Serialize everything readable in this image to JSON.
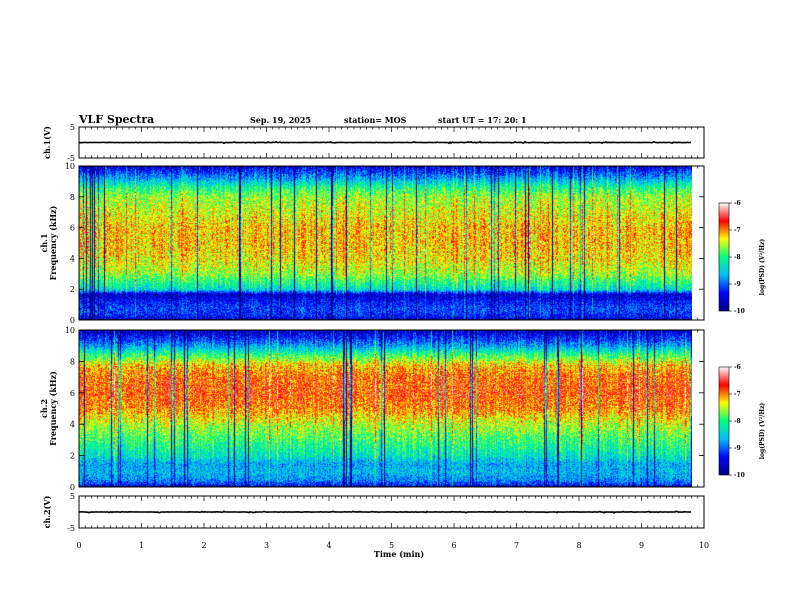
{
  "header": {
    "title": "VLF Spectra",
    "date": "Sep. 19, 2025",
    "station": "station= MOS",
    "start_time": "start  UT  =   17: 20: 1"
  },
  "chart_data": [
    {
      "type": "line",
      "name": "ch1-waveform",
      "ylabel": "ch.1(V)",
      "ylim": [
        -5,
        5
      ],
      "yticks": [
        "5",
        "-5"
      ],
      "x": [
        0,
        9.8
      ],
      "y": [
        0,
        0
      ],
      "xlim": [
        0,
        10
      ]
    },
    {
      "type": "heatmap",
      "name": "ch1-spectrogram",
      "ylabel": [
        "ch.1",
        "Frequency  (kHz)"
      ],
      "ylim": [
        0,
        10
      ],
      "yticks": [
        "0",
        "2",
        "4",
        "6",
        "8",
        "10"
      ],
      "xlim": [
        0,
        10
      ],
      "data_extent_min": 9.8,
      "colorbar": {
        "label": "log(PSD) (V²/Hz)",
        "ticks": [
          "-6",
          "-7",
          "-8",
          "-9",
          "-10"
        ],
        "range": [
          -10,
          -6
        ]
      },
      "profile": {
        "freq_khz": [
          0,
          0.4,
          0.8,
          1.2,
          1.7,
          2.0,
          2.5,
          3.0,
          4.0,
          5.0,
          6.0,
          7.0,
          8.0,
          8.6,
          9.2,
          10.0
        ],
        "mean_log_psd": [
          -9.5,
          -9.2,
          -9.1,
          -9.3,
          -9.6,
          -8.4,
          -8.0,
          -7.6,
          -7.3,
          -7.2,
          -7.2,
          -7.4,
          -7.6,
          -8.0,
          -8.7,
          -9.5
        ]
      }
    },
    {
      "type": "heatmap",
      "name": "ch2-spectrogram",
      "ylabel": [
        "ch.2",
        "Frequency  (kHz)"
      ],
      "ylim": [
        0,
        10
      ],
      "yticks": [
        "0",
        "2",
        "4",
        "6",
        "8",
        "10"
      ],
      "xlim": [
        0,
        10
      ],
      "data_extent_min": 9.8,
      "colorbar": {
        "label": "log(PSD) (V²/Hz)",
        "ticks": [
          "-6",
          "-7",
          "-8",
          "-9",
          "-10"
        ],
        "range": [
          -10,
          -6
        ]
      },
      "profile": {
        "freq_khz": [
          0,
          0.5,
          1.0,
          1.5,
          2.0,
          3.0,
          4.0,
          5.0,
          6.0,
          7.0,
          7.8,
          8.5,
          9.0,
          9.5,
          10.0
        ],
        "mean_log_psd": [
          -9.4,
          -8.8,
          -8.6,
          -8.7,
          -8.3,
          -7.9,
          -7.5,
          -7.0,
          -6.8,
          -6.9,
          -7.2,
          -8.0,
          -8.7,
          -9.2,
          -9.6
        ]
      }
    },
    {
      "type": "line",
      "name": "ch2-waveform",
      "ylabel": "ch.2(V)",
      "ylim": [
        -5,
        5
      ],
      "yticks": [
        "5",
        "-5"
      ],
      "x": [
        0,
        9.8
      ],
      "y": [
        0,
        0
      ],
      "xlim": [
        0,
        10
      ]
    }
  ],
  "xaxis": {
    "label": "Time  (min)",
    "ticks": [
      "0",
      "1",
      "2",
      "3",
      "4",
      "5",
      "6",
      "7",
      "8",
      "9",
      "10"
    ]
  },
  "colors": {
    "colormap": [
      "#000080",
      "#0000ff",
      "#00bfff",
      "#00ff80",
      "#ffff00",
      "#ff0000",
      "#ffffff"
    ]
  }
}
